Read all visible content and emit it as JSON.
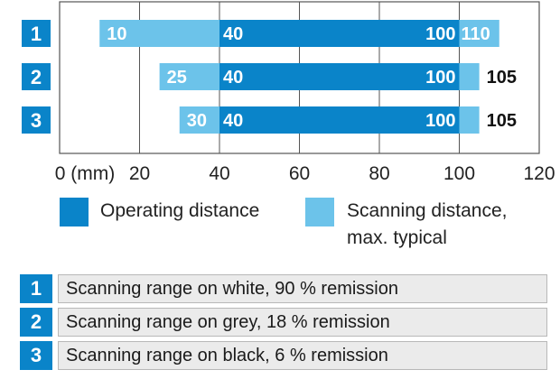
{
  "chart_data": {
    "type": "bar",
    "orientation": "horizontal-range",
    "x_unit": "(mm)",
    "xlim": [
      0,
      120
    ],
    "x_ticks": [
      0,
      20,
      40,
      60,
      80,
      100,
      120
    ],
    "x_tick_labels": [
      "0 (mm)",
      "20",
      "40",
      "60",
      "80",
      "100",
      "120"
    ],
    "grid": true,
    "categories": [
      "1",
      "2",
      "3"
    ],
    "series": [
      {
        "name": "Scanning distance, max. typical",
        "color": "#6cc3ea",
        "ranges": [
          [
            10,
            110
          ],
          [
            25,
            105
          ],
          [
            30,
            105
          ]
        ]
      },
      {
        "name": "Operating distance",
        "color": "#0a84c9",
        "ranges": [
          [
            40,
            100
          ],
          [
            40,
            100
          ],
          [
            40,
            100
          ]
        ]
      }
    ],
    "bar_labels": [
      {
        "row": 0,
        "labels": [
          "10",
          "40",
          "100",
          "110"
        ]
      },
      {
        "row": 1,
        "labels": [
          "25",
          "40",
          "100",
          "105"
        ]
      },
      {
        "row": 2,
        "labels": [
          "30",
          "40",
          "100",
          "105"
        ]
      }
    ]
  },
  "legend": {
    "operating": "Operating distance",
    "scanning_line1": "Scanning distance,",
    "scanning_line2": "max. typical"
  },
  "table": [
    {
      "num": "1",
      "text": "Scanning range on white, 90 % remission"
    },
    {
      "num": "2",
      "text": "Scanning range on grey, 18 % remission"
    },
    {
      "num": "3",
      "text": "Scanning range on black, 6 % remission"
    }
  ]
}
